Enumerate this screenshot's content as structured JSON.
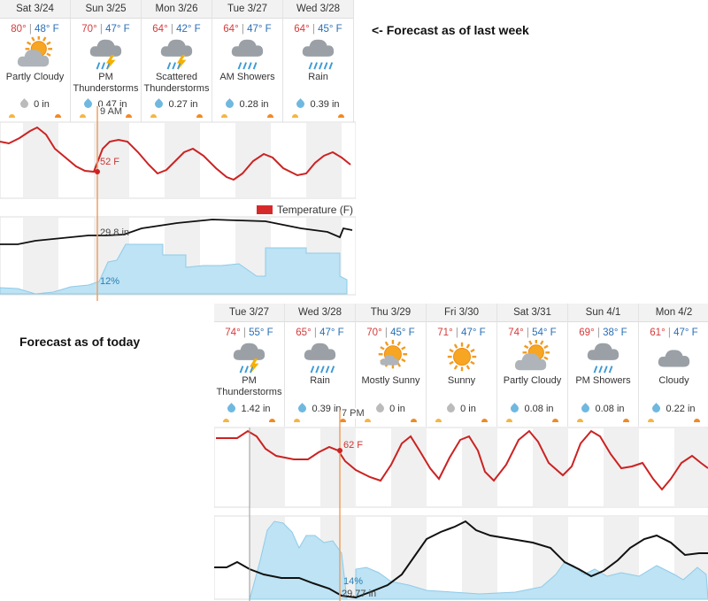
{
  "captions": {
    "last_week": "<- Forecast as of last week",
    "today": "Forecast as of today"
  },
  "legend": {
    "temperature": "Temperature (F)"
  },
  "colors": {
    "high": "#d63a3a",
    "low": "#2a6fb5",
    "temp_line": "#cc2222",
    "rain_fill": "#bde3f4",
    "pressure": "#111111",
    "cursor": "#f0a060"
  },
  "last_week": {
    "days": [
      {
        "name": "Sat 3/24",
        "hi": "80°",
        "lo": "48° F",
        "icon": "partly-cloudy-icon",
        "cond": "Partly Cloudy",
        "precip": "0 in",
        "drop": "grey"
      },
      {
        "name": "Sun 3/25",
        "hi": "70°",
        "lo": "47° F",
        "icon": "thunderstorm-icon",
        "cond": "PM Thunderstorms",
        "precip": "0.47 in",
        "drop": "blue"
      },
      {
        "name": "Mon 3/26",
        "hi": "64°",
        "lo": "42° F",
        "icon": "thunderstorm-icon",
        "cond": "Scattered Thunderstorms",
        "precip": "0.27 in",
        "drop": "blue"
      },
      {
        "name": "Tue 3/27",
        "hi": "64°",
        "lo": "47° F",
        "icon": "showers-icon",
        "cond": "AM Showers",
        "precip": "0.28 in",
        "drop": "blue"
      },
      {
        "name": "Wed 3/28",
        "hi": "64°",
        "lo": "45° F",
        "icon": "rain-icon",
        "cond": "Rain",
        "precip": "0.39 in",
        "drop": "blue"
      }
    ],
    "cursor_time": "9 AM",
    "temp_label": "52 F",
    "pressure_label": "29.8 in",
    "rain_label": "12%"
  },
  "today": {
    "days": [
      {
        "name": "Tue 3/27",
        "hi": "74°",
        "lo": "55° F",
        "icon": "thunderstorm-icon",
        "cond": "PM Thunderstorms",
        "precip": "1.42 in",
        "drop": "blue"
      },
      {
        "name": "Wed 3/28",
        "hi": "65°",
        "lo": "47° F",
        "icon": "rain-icon",
        "cond": "Rain",
        "precip": "0.39 in",
        "drop": "blue"
      },
      {
        "name": "Thu 3/29",
        "hi": "70°",
        "lo": "45° F",
        "icon": "mostly-sunny-icon",
        "cond": "Mostly Sunny",
        "precip": "0 in",
        "drop": "grey"
      },
      {
        "name": "Fri 3/30",
        "hi": "71°",
        "lo": "47° F",
        "icon": "sunny-icon",
        "cond": "Sunny",
        "precip": "0 in",
        "drop": "grey"
      },
      {
        "name": "Sat 3/31",
        "hi": "74°",
        "lo": "54° F",
        "icon": "partly-cloudy-icon",
        "cond": "Partly Cloudy",
        "precip": "0.08 in",
        "drop": "blue"
      },
      {
        "name": "Sun 4/1",
        "hi": "69°",
        "lo": "38° F",
        "icon": "showers-icon",
        "cond": "PM Showers",
        "precip": "0.08 in",
        "drop": "blue"
      },
      {
        "name": "Mon 4/2",
        "hi": "61°",
        "lo": "47° F",
        "icon": "cloudy-icon",
        "cond": "Cloudy",
        "precip": "0.22 in",
        "drop": "blue"
      }
    ],
    "cursor_time": "7 PM",
    "temp_label": "62 F",
    "pressure_label": "29.77 in",
    "rain_label": "14%"
  }
}
